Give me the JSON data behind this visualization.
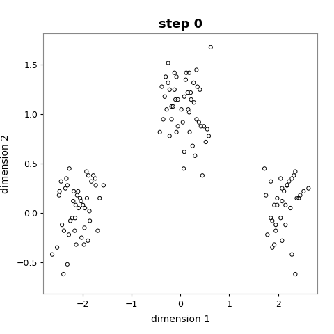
{
  "title": "step 0",
  "xlabel": "dimension 1",
  "ylabel": "dimension 2",
  "xlim": [
    -2.8,
    2.8
  ],
  "ylim": [
    -0.82,
    1.82
  ],
  "xticks": [
    -2,
    -1,
    0,
    1,
    2
  ],
  "yticks": [
    -0.5,
    0.0,
    0.5,
    1.0,
    1.5
  ],
  "background_color": "#ffffff",
  "marker_color": "none",
  "marker_edge_color": "#000000",
  "marker_size": 14,
  "marker_linewidth": 0.7,
  "title_fontsize": 13,
  "label_fontsize": 10,
  "tick_fontsize": 9,
  "points_x": [
    -2.27,
    -2.48,
    -2.15,
    -1.82,
    -2.38,
    -2.14,
    -2.31,
    -1.97,
    -2.05,
    -1.88,
    -2.42,
    -2.18,
    -1.95,
    -2.02,
    -2.33,
    -1.85,
    -2.11,
    -1.92,
    -2.28,
    -2.19,
    -1.73,
    -2.52,
    -2.08,
    -2.35,
    -1.96,
    -1.78,
    -2.21,
    -1.65,
    -2.44,
    -1.89,
    -2.09,
    -2.62,
    -1.99,
    -1.74,
    -2.16,
    -2.03,
    -2.31,
    -1.86,
    -2.47,
    -2.13,
    -1.91,
    -2.25,
    -1.57,
    -1.69,
    -2.39,
    -0.12,
    0.08,
    -0.25,
    0.18,
    -0.05,
    0.22,
    -0.18,
    0.35,
    0.02,
    -0.3,
    0.15,
    -0.08,
    0.28,
    -0.22,
    0.11,
    0.4,
    -0.15,
    0.05,
    -0.32,
    0.25,
    0.48,
    -0.38,
    0.19,
    -0.1,
    0.33,
    0.52,
    -0.28,
    0.08,
    -0.42,
    0.21,
    0.38,
    -0.18,
    0.12,
    0.58,
    -0.35,
    0.27,
    -0.05,
    0.42,
    0.16,
    -0.22,
    0.3,
    0.55,
    -0.12,
    0.07,
    0.45,
    0.62,
    -0.25,
    0.33,
    -0.08,
    0.18,
    1.85,
    2.12,
    1.92,
    2.28,
    1.75,
    2.05,
    2.18,
    1.98,
    2.35,
    2.08,
    1.88,
    2.22,
    2.45,
    1.95,
    2.15,
    2.32,
    1.78,
    2.08,
    1.92,
    2.52,
    2.18,
    1.85,
    2.38,
    2.05,
    1.95,
    2.25,
    2.62,
    1.88,
    2.15,
    2.42,
    1.72,
    2.08,
    2.28,
    1.98,
    2.35
  ],
  "points_y": [
    0.45,
    0.18,
    -0.05,
    0.32,
    -0.18,
    0.08,
    0.28,
    -0.32,
    0.15,
    0.38,
    -0.12,
    0.22,
    0.05,
    -0.25,
    0.35,
    -0.08,
    0.18,
    0.42,
    -0.22,
    0.12,
    0.28,
    -0.35,
    0.05,
    0.25,
    -0.15,
    0.38,
    -0.05,
    0.15,
    0.32,
    -0.28,
    0.22,
    -0.42,
    0.08,
    0.35,
    -0.18,
    0.12,
    -0.52,
    0.02,
    0.22,
    -0.32,
    0.15,
    -0.08,
    0.28,
    -0.18,
    -0.62,
    1.25,
    1.18,
    1.32,
    1.42,
    0.88,
    1.15,
    0.95,
    1.28,
    1.05,
    1.38,
    1.22,
    0.82,
    1.12,
    0.78,
    1.35,
    1.25,
    1.08,
    0.92,
    1.18,
    0.68,
    0.88,
    1.28,
    0.82,
    1.15,
    0.95,
    0.72,
    1.05,
    0.62,
    0.82,
    1.22,
    0.92,
    1.08,
    1.42,
    0.78,
    0.95,
    1.32,
    1.15,
    0.88,
    1.05,
    1.25,
    0.58,
    0.85,
    1.42,
    0.45,
    0.38,
    1.68,
    1.52,
    1.45,
    1.38,
    1.02,
    0.32,
    0.22,
    0.08,
    0.35,
    0.18,
    -0.05,
    0.28,
    0.15,
    0.42,
    0.25,
    -0.08,
    0.32,
    0.18,
    -0.12,
    0.08,
    0.38,
    -0.22,
    0.12,
    -0.32,
    0.22,
    0.28,
    -0.05,
    0.15,
    0.35,
    -0.18,
    0.05,
    0.25,
    -0.35,
    -0.12,
    0.15,
    0.45,
    -0.28,
    -0.42,
    0.08,
    -0.62
  ]
}
